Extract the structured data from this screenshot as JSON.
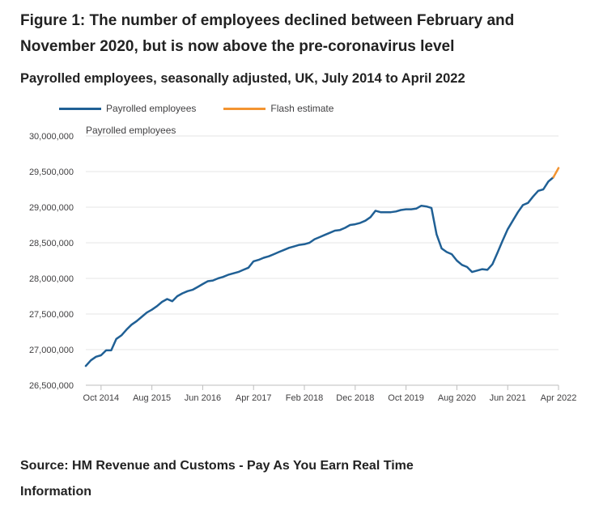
{
  "figure": {
    "title": "Figure 1: The number of employees declined between February and November 2020, but is now above the pre-coronavirus level",
    "subtitle": "Payrolled employees, seasonally adjusted, UK, July 2014 to April 2022",
    "source": "Source: HM Revenue and Customs - Pay As You Earn Real Time Information"
  },
  "legend": {
    "items": [
      {
        "label": "Payrolled employees",
        "color": "#206095"
      },
      {
        "label": "Flash estimate",
        "color": "#f39431"
      }
    ]
  },
  "chart_data": {
    "type": "line",
    "title": "Payrolled employees, seasonally adjusted, UK, July 2014 to April 2022",
    "ylabel": "Payrolled employees",
    "xlabel": "",
    "ylim": [
      26500000,
      30000000
    ],
    "yticks": [
      26500000,
      27000000,
      27500000,
      28000000,
      28500000,
      29000000,
      29500000,
      30000000
    ],
    "ytick_labels": [
      "26,500,000",
      "27,000,000",
      "27,500,000",
      "28,000,000",
      "28,500,000",
      "29,000,000",
      "29,500,000",
      "30,000,000"
    ],
    "xtick_labels": [
      "Oct 2014",
      "Aug 2015",
      "Jun 2016",
      "Apr 2017",
      "Feb 2018",
      "Dec 2018",
      "Oct 2019",
      "Aug 2020",
      "Jun 2021",
      "Apr 2022"
    ],
    "xtick_months": [
      "2014-10",
      "2015-08",
      "2016-06",
      "2017-04",
      "2018-02",
      "2018-12",
      "2019-10",
      "2020-08",
      "2021-06",
      "2022-04"
    ],
    "x_start": "2014-07",
    "grid": true,
    "legend_position": "top-left",
    "series": [
      {
        "name": "Payrolled employees",
        "color": "#206095",
        "x_start": "2014-07",
        "values": [
          26770000,
          26850000,
          26900000,
          26920000,
          26990000,
          26990000,
          27150000,
          27200000,
          27280000,
          27350000,
          27400000,
          27460000,
          27520000,
          27560000,
          27610000,
          27670000,
          27710000,
          27680000,
          27750000,
          27790000,
          27820000,
          27840000,
          27880000,
          27920000,
          27960000,
          27970000,
          28000000,
          28020000,
          28050000,
          28070000,
          28090000,
          28120000,
          28150000,
          28240000,
          28260000,
          28290000,
          28310000,
          28340000,
          28370000,
          28400000,
          28430000,
          28450000,
          28470000,
          28480000,
          28500000,
          28550000,
          28580000,
          28610000,
          28640000,
          28670000,
          28680000,
          28710000,
          28750000,
          28760000,
          28780000,
          28810000,
          28860000,
          28950000,
          28930000,
          28930000,
          28930000,
          28940000,
          28960000,
          28970000,
          28970000,
          28980000,
          29020000,
          29010000,
          28990000,
          28620000,
          28420000,
          28370000,
          28340000,
          28250000,
          28190000,
          28160000,
          28090000,
          28110000,
          28130000,
          28120000,
          28200000,
          28360000,
          28530000,
          28690000,
          28810000,
          28930000,
          29030000,
          29060000,
          29150000,
          29230000,
          29250000,
          29360000,
          29420000
        ]
      },
      {
        "name": "Flash estimate",
        "color": "#f39431",
        "x_start": "2022-03",
        "values": [
          29420000,
          29550000
        ]
      }
    ]
  }
}
